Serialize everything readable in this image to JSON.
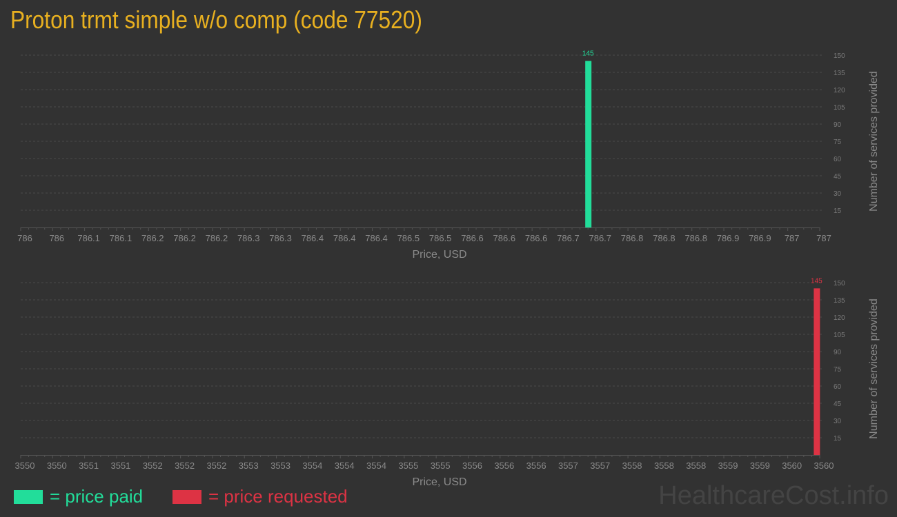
{
  "title": "Proton trmt simple w/o comp (code 77520)",
  "chart_data": [
    {
      "type": "bar",
      "xlabel": "Price, USD",
      "ylabel": "Number of services provided",
      "xlim": [
        786,
        787
      ],
      "ylim": [
        0,
        150
      ],
      "x_tick_labels": [
        "786",
        "786",
        "786.1",
        "786.1",
        "786.2",
        "786.2",
        "786.2",
        "786.3",
        "786.3",
        "786.4",
        "786.4",
        "786.4",
        "786.5",
        "786.5",
        "786.6",
        "786.6",
        "786.6",
        "786.7",
        "786.7",
        "786.8",
        "786.8",
        "786.8",
        "786.9",
        "786.9",
        "787",
        "787"
      ],
      "y_ticks": [
        15,
        30,
        45,
        60,
        75,
        90,
        105,
        120,
        135,
        150
      ],
      "grid": true,
      "color": "#22dd9a",
      "points": [
        {
          "x": 786.71,
          "y": 145,
          "label": "145"
        }
      ]
    },
    {
      "type": "bar",
      "xlabel": "Price, USD",
      "ylabel": "Number of services provided",
      "xlim": [
        3550,
        3560
      ],
      "ylim": [
        0,
        150
      ],
      "x_tick_labels": [
        "3550",
        "3550",
        "3551",
        "3551",
        "3552",
        "3552",
        "3552",
        "3553",
        "3553",
        "3554",
        "3554",
        "3554",
        "3555",
        "3555",
        "3556",
        "3556",
        "3556",
        "3557",
        "3557",
        "3558",
        "3558",
        "3558",
        "3559",
        "3559",
        "3560",
        "3560"
      ],
      "y_ticks": [
        15,
        30,
        45,
        60,
        75,
        90,
        105,
        120,
        135,
        150
      ],
      "grid": true,
      "color": "#dd3344",
      "points": [
        {
          "x": 3559.96,
          "y": 145,
          "label": "145"
        }
      ]
    }
  ],
  "legend": [
    {
      "label": "= price paid",
      "color": "#22dd9a"
    },
    {
      "label": "= price requested",
      "color": "#dd3344"
    }
  ],
  "watermark": "HealthcareCost.info"
}
